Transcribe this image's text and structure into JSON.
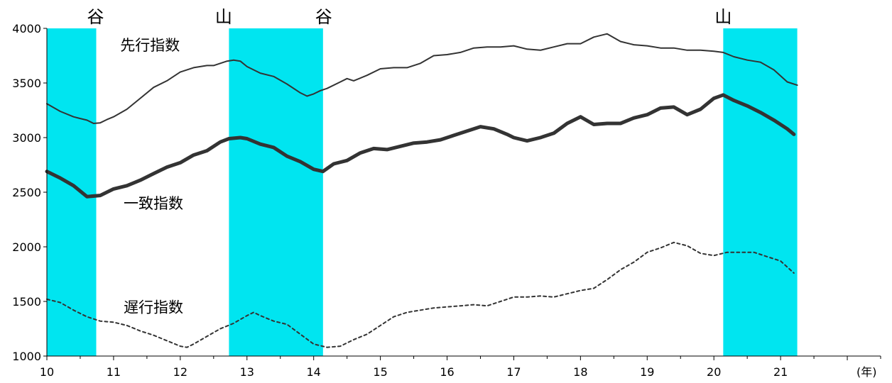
{
  "chart_data": {
    "type": "line",
    "xlabel": "(年)",
    "ylabel": "",
    "xlim": [
      10,
      22.5
    ],
    "ylim": [
      1000,
      4000
    ],
    "x_ticks": [
      10,
      11,
      12,
      13,
      14,
      15,
      16,
      17,
      18,
      19,
      20,
      21
    ],
    "y_ticks": [
      1000,
      1500,
      2000,
      2500,
      3000,
      3500,
      4000
    ],
    "grid": false,
    "shaded_periods": [
      {
        "start": 10.0,
        "end": 10.74,
        "color": "#00e5f0"
      },
      {
        "start": 12.73,
        "end": 14.14,
        "color": "#00e5f0"
      },
      {
        "start": 20.14,
        "end": 21.25,
        "color": "#00e5f0"
      }
    ],
    "phase_labels": [
      {
        "x": 10.73,
        "text": "谷"
      },
      {
        "x": 12.65,
        "text": "山"
      },
      {
        "x": 14.15,
        "text": "谷"
      },
      {
        "x": 20.14,
        "text": "山"
      }
    ],
    "series": [
      {
        "name": "先行指数",
        "label_pos": {
          "x": 11.1,
          "y": 3800
        },
        "style": "thin",
        "x": [
          10.0,
          10.2,
          10.4,
          10.5,
          10.6,
          10.7,
          10.8,
          10.9,
          11.0,
          11.2,
          11.4,
          11.6,
          11.8,
          12.0,
          12.2,
          12.4,
          12.5,
          12.6,
          12.7,
          12.8,
          12.9,
          13.0,
          13.2,
          13.4,
          13.6,
          13.8,
          13.9,
          14.0,
          14.1,
          14.2,
          14.4,
          14.5,
          14.6,
          14.8,
          15.0,
          15.2,
          15.4,
          15.6,
          15.8,
          16.0,
          16.2,
          16.4,
          16.6,
          16.8,
          17.0,
          17.2,
          17.4,
          17.6,
          17.8,
          18.0,
          18.2,
          18.4,
          18.6,
          18.8,
          19.0,
          19.2,
          19.4,
          19.6,
          19.8,
          20.0,
          20.14,
          20.3,
          20.5,
          20.7,
          20.9,
          21.1,
          21.25
        ],
        "y": [
          3310,
          3240,
          3190,
          3175,
          3160,
          3130,
          3135,
          3165,
          3190,
          3260,
          3360,
          3460,
          3520,
          3600,
          3640,
          3660,
          3660,
          3680,
          3700,
          3710,
          3700,
          3650,
          3590,
          3560,
          3490,
          3410,
          3380,
          3400,
          3430,
          3450,
          3510,
          3540,
          3520,
          3570,
          3630,
          3640,
          3640,
          3680,
          3750,
          3760,
          3780,
          3820,
          3830,
          3830,
          3840,
          3810,
          3800,
          3830,
          3860,
          3860,
          3920,
          3950,
          3880,
          3850,
          3840,
          3820,
          3820,
          3800,
          3800,
          3790,
          3780,
          3740,
          3710,
          3690,
          3620,
          3510,
          3480
        ]
      },
      {
        "name": "一致指数",
        "label_pos": {
          "x": 11.15,
          "y": 2350
        },
        "style": "thick",
        "x": [
          10.0,
          10.2,
          10.4,
          10.6,
          10.8,
          11.0,
          11.2,
          11.4,
          11.6,
          11.8,
          12.0,
          12.2,
          12.4,
          12.6,
          12.73,
          12.9,
          13.0,
          13.2,
          13.4,
          13.6,
          13.8,
          14.0,
          14.14,
          14.3,
          14.5,
          14.7,
          14.9,
          15.1,
          15.3,
          15.5,
          15.7,
          15.9,
          16.1,
          16.3,
          16.5,
          16.7,
          16.9,
          17.0,
          17.2,
          17.4,
          17.6,
          17.8,
          18.0,
          18.2,
          18.4,
          18.6,
          18.8,
          19.0,
          19.2,
          19.4,
          19.6,
          19.8,
          20.0,
          20.14,
          20.3,
          20.5,
          20.7,
          20.9,
          21.1,
          21.2
        ],
        "y": [
          2690,
          2630,
          2560,
          2460,
          2470,
          2530,
          2560,
          2610,
          2670,
          2730,
          2770,
          2840,
          2880,
          2960,
          2990,
          3000,
          2990,
          2940,
          2910,
          2830,
          2780,
          2710,
          2690,
          2760,
          2790,
          2860,
          2900,
          2890,
          2920,
          2950,
          2960,
          2980,
          3020,
          3060,
          3100,
          3080,
          3030,
          3000,
          2970,
          3000,
          3040,
          3130,
          3190,
          3120,
          3130,
          3130,
          3180,
          3210,
          3270,
          3280,
          3210,
          3260,
          3360,
          3390,
          3340,
          3290,
          3230,
          3160,
          3080,
          3030
        ]
      },
      {
        "name": "遅行指数",
        "label_pos": {
          "x": 11.15,
          "y": 1400
        },
        "style": "dashed",
        "x": [
          10.0,
          10.2,
          10.4,
          10.6,
          10.8,
          11.0,
          11.2,
          11.4,
          11.6,
          11.8,
          12.0,
          12.1,
          12.2,
          12.4,
          12.6,
          12.8,
          13.0,
          13.1,
          13.2,
          13.4,
          13.6,
          13.8,
          14.0,
          14.2,
          14.4,
          14.6,
          14.8,
          15.0,
          15.2,
          15.4,
          15.6,
          15.8,
          16.0,
          16.2,
          16.4,
          16.6,
          16.8,
          17.0,
          17.2,
          17.4,
          17.6,
          17.8,
          18.0,
          18.2,
          18.4,
          18.6,
          18.8,
          19.0,
          19.2,
          19.4,
          19.6,
          19.8,
          20.0,
          20.2,
          20.4,
          20.6,
          20.8,
          21.0,
          21.2
        ],
        "y": [
          1520,
          1490,
          1420,
          1360,
          1320,
          1310,
          1280,
          1230,
          1190,
          1140,
          1090,
          1080,
          1110,
          1180,
          1250,
          1300,
          1370,
          1400,
          1370,
          1320,
          1290,
          1200,
          1110,
          1080,
          1090,
          1150,
          1200,
          1280,
          1360,
          1400,
          1420,
          1440,
          1450,
          1460,
          1470,
          1460,
          1500,
          1540,
          1540,
          1550,
          1540,
          1570,
          1600,
          1620,
          1700,
          1790,
          1860,
          1950,
          1990,
          2040,
          2010,
          1940,
          1920,
          1950,
          1950,
          1950,
          1910,
          1870,
          1760
        ]
      }
    ]
  }
}
